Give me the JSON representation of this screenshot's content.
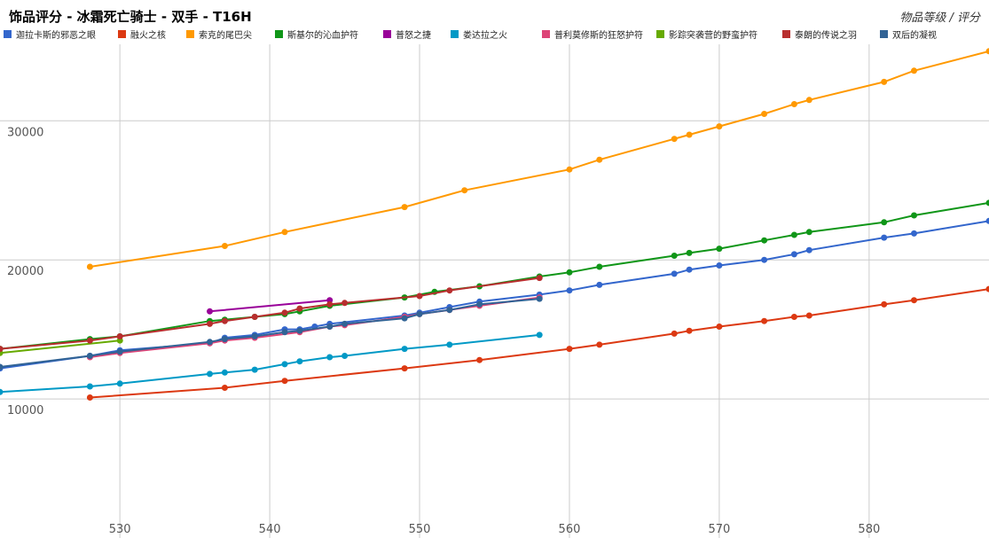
{
  "chart_data": {
    "type": "line",
    "title": "饰品评分 - 冰霜死亡骑士 - 双手 - T16H",
    "ylabel": "物品等级 / 评分",
    "xlabel": "",
    "xlim": [
      522,
      588
    ],
    "ylim": [
      0,
      35500
    ],
    "xticks": [
      530,
      540,
      550,
      560,
      570,
      580
    ],
    "yticks": [
      10000,
      20000,
      30000
    ],
    "grid": true,
    "legend_position": "top",
    "series": [
      {
        "name": "迦拉卡斯的邪恶之眼",
        "color": "#3366cc",
        "points": [
          [
            522,
            12200
          ],
          [
            528,
            13100
          ],
          [
            530,
            13500
          ],
          [
            536,
            14000
          ],
          [
            537,
            14400
          ],
          [
            539,
            14600
          ],
          [
            541,
            15000
          ],
          [
            542,
            15000
          ],
          [
            543,
            15200
          ],
          [
            544,
            15400
          ],
          [
            549,
            16000
          ],
          [
            550,
            16200
          ],
          [
            552,
            16600
          ],
          [
            554,
            17000
          ],
          [
            558,
            17500
          ],
          [
            560,
            17800
          ],
          [
            562,
            18200
          ],
          [
            567,
            19000
          ],
          [
            568,
            19300
          ],
          [
            570,
            19600
          ],
          [
            573,
            20000
          ],
          [
            575,
            20400
          ],
          [
            576,
            20700
          ],
          [
            581,
            21600
          ],
          [
            583,
            21900
          ],
          [
            588,
            22800
          ]
        ]
      },
      {
        "name": "融火之核",
        "color": "#dc3912",
        "points": [
          [
            528,
            10100
          ],
          [
            537,
            10800
          ],
          [
            541,
            11300
          ],
          [
            549,
            12200
          ],
          [
            554,
            12800
          ],
          [
            560,
            13600
          ],
          [
            562,
            13900
          ],
          [
            567,
            14700
          ],
          [
            568,
            14900
          ],
          [
            570,
            15200
          ],
          [
            573,
            15600
          ],
          [
            575,
            15900
          ],
          [
            576,
            16000
          ],
          [
            581,
            16800
          ],
          [
            583,
            17100
          ],
          [
            588,
            17900
          ]
        ]
      },
      {
        "name": "索克的尾巴尖",
        "color": "#ff9900",
        "points": [
          [
            528,
            19500
          ],
          [
            537,
            21000
          ],
          [
            541,
            22000
          ],
          [
            549,
            23800
          ],
          [
            553,
            25000
          ],
          [
            560,
            26500
          ],
          [
            562,
            27200
          ],
          [
            567,
            28700
          ],
          [
            568,
            29000
          ],
          [
            570,
            29600
          ],
          [
            573,
            30500
          ],
          [
            575,
            31200
          ],
          [
            576,
            31500
          ],
          [
            581,
            32800
          ],
          [
            583,
            33600
          ],
          [
            588,
            35000
          ]
        ]
      },
      {
        "name": "斯基尔的沁血护符",
        "color": "#109618",
        "points": [
          [
            522,
            13600
          ],
          [
            528,
            14300
          ],
          [
            530,
            14500
          ],
          [
            536,
            15600
          ],
          [
            537,
            15700
          ],
          [
            539,
            15900
          ],
          [
            541,
            16100
          ],
          [
            542,
            16300
          ],
          [
            544,
            16700
          ],
          [
            549,
            17300
          ],
          [
            551,
            17700
          ],
          [
            554,
            18100
          ],
          [
            558,
            18800
          ],
          [
            560,
            19100
          ],
          [
            562,
            19500
          ],
          [
            567,
            20300
          ],
          [
            568,
            20500
          ],
          [
            570,
            20800
          ],
          [
            573,
            21400
          ],
          [
            575,
            21800
          ],
          [
            576,
            22000
          ],
          [
            581,
            22700
          ],
          [
            583,
            23200
          ],
          [
            588,
            24100
          ]
        ]
      },
      {
        "name": "普怒之捷",
        "color": "#990099",
        "points": [
          [
            536,
            16300
          ],
          [
            544,
            17100
          ]
        ]
      },
      {
        "name": "娄达拉之火",
        "color": "#0099c6",
        "points": [
          [
            522,
            10500
          ],
          [
            528,
            10900
          ],
          [
            530,
            11100
          ],
          [
            536,
            11800
          ],
          [
            537,
            11900
          ],
          [
            539,
            12100
          ],
          [
            541,
            12500
          ],
          [
            542,
            12700
          ],
          [
            544,
            13000
          ],
          [
            545,
            13100
          ],
          [
            549,
            13600
          ],
          [
            552,
            13900
          ],
          [
            558,
            14600
          ]
        ]
      },
      {
        "name": "普利莫修斯的狂怒护符",
        "color": "#dd4477",
        "points": [
          [
            528,
            13000
          ],
          [
            530,
            13300
          ],
          [
            536,
            14000
          ],
          [
            537,
            14200
          ],
          [
            539,
            14400
          ],
          [
            542,
            14800
          ],
          [
            544,
            15200
          ],
          [
            545,
            15300
          ],
          [
            549,
            15900
          ],
          [
            550,
            16100
          ],
          [
            552,
            16400
          ],
          [
            554,
            16700
          ],
          [
            558,
            17300
          ]
        ]
      },
      {
        "name": "影踪突袭营的野蛮护符",
        "color": "#66aa00",
        "points": [
          [
            522,
            13300
          ],
          [
            530,
            14200
          ]
        ]
      },
      {
        "name": "泰朗的传说之羽",
        "color": "#b82e2e",
        "points": [
          [
            522,
            13600
          ],
          [
            528,
            14200
          ],
          [
            530,
            14500
          ],
          [
            536,
            15400
          ],
          [
            537,
            15600
          ],
          [
            539,
            15900
          ],
          [
            541,
            16200
          ],
          [
            542,
            16500
          ],
          [
            544,
            16800
          ],
          [
            545,
            16900
          ],
          [
            550,
            17400
          ],
          [
            552,
            17800
          ],
          [
            558,
            18700
          ]
        ]
      },
      {
        "name": "双后的凝视",
        "color": "#316395",
        "points": [
          [
            522,
            12300
          ],
          [
            528,
            13100
          ],
          [
            530,
            13400
          ],
          [
            536,
            14100
          ],
          [
            537,
            14300
          ],
          [
            539,
            14500
          ],
          [
            541,
            14800
          ],
          [
            542,
            14900
          ],
          [
            544,
            15200
          ],
          [
            545,
            15400
          ],
          [
            549,
            15800
          ],
          [
            550,
            16100
          ],
          [
            552,
            16400
          ],
          [
            554,
            16800
          ],
          [
            558,
            17200
          ]
        ]
      }
    ]
  }
}
